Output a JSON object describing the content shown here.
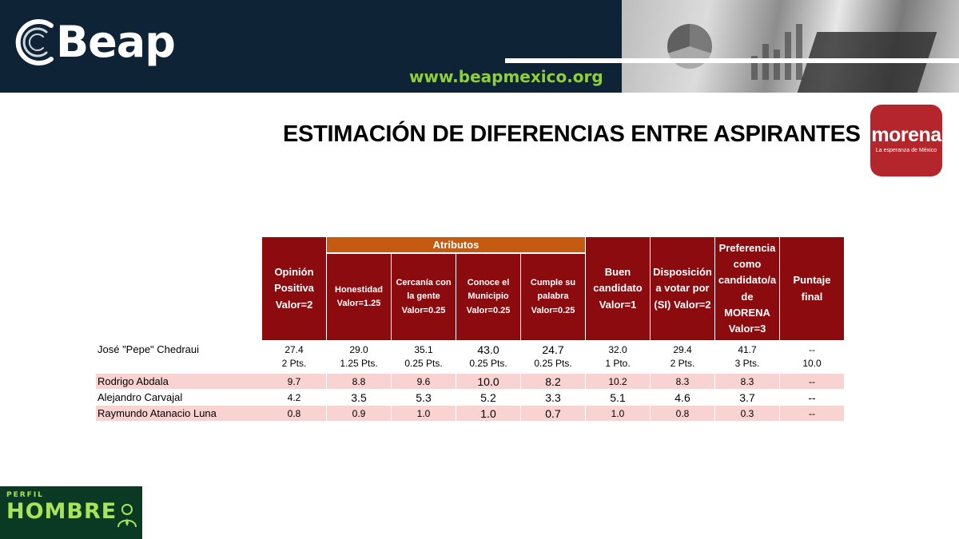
{
  "header": {
    "brand": "Beap",
    "url": "www.beapmexico.org"
  },
  "title": "ESTIMACIÓN DE DIFERENCIAS ENTRE ASPIRANTES",
  "party_logo": {
    "name": "morena",
    "tagline": "La esperanza de México"
  },
  "table": {
    "group_header": "Atributos",
    "columns": [
      "Opinión Positiva Valor=2",
      "Honestidad Valor=1.25",
      "Cercanía con la gente Valor=0.25",
      "Conoce el Municipio Valor=0.25",
      "Cumple su palabra Valor=0.25",
      "Buen candidato Valor=1",
      "Disposición a votar por (SI) Valor=2",
      "Preferencia como candidato/a de MORENA Valor=3",
      "Puntaje final"
    ],
    "rows": [
      {
        "name": "José \"Pepe\" Chedraui",
        "values": [
          "27.4",
          "29.0",
          "35.1",
          "43.0",
          "24.7",
          "32.0",
          "29.4",
          "41.7",
          "--"
        ],
        "points": [
          "2 Pts.",
          "1.25 Pts.",
          "0.25 Pts.",
          "0.25 Pts.",
          "0.25 Pts.",
          "1 Pto.",
          "2 Pts.",
          "3 Pts.",
          "10.0"
        ]
      },
      {
        "name": "Rodrigo Abdala",
        "values": [
          "9.7",
          "8.8",
          "9.6",
          "10.0",
          "8.2",
          "10.2",
          "8.3",
          "8.3",
          "--"
        ]
      },
      {
        "name": "Alejandro Carvajal",
        "values": [
          "4.2",
          "3.5",
          "5.3",
          "5.2",
          "3.3",
          "5.1",
          "4.6",
          "3.7",
          "--"
        ]
      },
      {
        "name": "Raymundo Atanacio Luna",
        "values": [
          "0.8",
          "0.9",
          "1.0",
          "1.0",
          "0.7",
          "1.0",
          "0.8",
          "0.3",
          "--"
        ]
      }
    ]
  },
  "footer_badge": {
    "top": "PERFIL",
    "main": "HOMBRE"
  },
  "colors": {
    "header_red": "#8b0b0f",
    "attr_orange": "#c55a11",
    "row_pink": "#f9d2d2",
    "banner_navy": "#0e2336",
    "url_green": "#8fcf3c"
  }
}
